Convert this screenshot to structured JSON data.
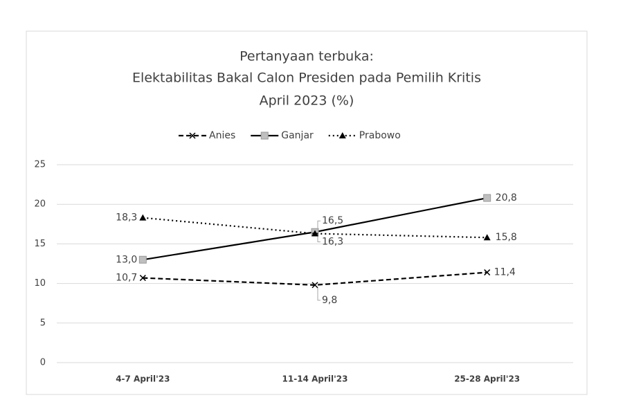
{
  "chart_data": {
    "type": "line",
    "title": [
      "Pertanyaan terbuka:",
      "Elektabilitas Bakal Calon Presiden pada Pemilih Kritis",
      "April 2023 (%)"
    ],
    "categories": [
      "4-7 April'23",
      "11-14 April'23",
      "25-28 April'23"
    ],
    "series": [
      {
        "name": "Anies",
        "color": "#000000",
        "dash": "7,4",
        "marker": "x",
        "values": [
          10.7,
          9.8,
          11.4
        ],
        "value_labels": [
          "10,7",
          "9,8",
          "11,4"
        ]
      },
      {
        "name": "Ganjar",
        "color": "#000000",
        "dash": "none",
        "marker": "square",
        "marker_color": "#bfbfbf",
        "values": [
          13.0,
          16.5,
          20.8
        ],
        "value_labels": [
          "13,0",
          "16,5",
          "20,8"
        ]
      },
      {
        "name": "Prabowo",
        "color": "#000000",
        "dash": "2,4",
        "marker": "triangle",
        "values": [
          18.3,
          16.3,
          15.8
        ],
        "value_labels": [
          "18,3",
          "16,3",
          "15,8"
        ]
      }
    ],
    "ylim": [
      0,
      25
    ],
    "yticks": [
      0,
      5,
      10,
      15,
      20,
      25
    ],
    "grid": true,
    "legend": "top"
  }
}
